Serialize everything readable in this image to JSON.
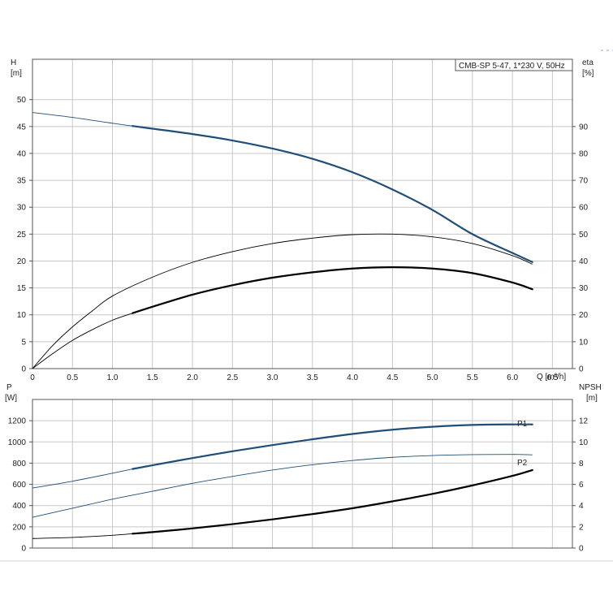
{
  "chart_data": [
    {
      "panel": "upper",
      "type": "line",
      "legend": "CMB-SP 5-47, 1*230 V, 50Hz",
      "legend_position": "top-right",
      "grid": true,
      "x_axis": {
        "label": "Q [m³/h]",
        "range": [
          0,
          6.75
        ],
        "ticks": [
          "0",
          "0.5",
          "1.0",
          "1.5",
          "2.0",
          "2.5",
          "3.0",
          "3.5",
          "4.0",
          "4.5",
          "5.0",
          "5.5",
          "6.0",
          "6.5"
        ]
      },
      "y_left": {
        "label_line1": "H",
        "label_line2": "[m]",
        "range": [
          0,
          57.5
        ],
        "ticks": [
          "0",
          "5",
          "10",
          "15",
          "20",
          "25",
          "30",
          "35",
          "40",
          "45",
          "50"
        ]
      },
      "y_right": {
        "label_line1": "eta",
        "label_line2": "[%]",
        "range": [
          0,
          115
        ],
        "ticks": [
          "0",
          "10",
          "20",
          "30",
          "40",
          "50",
          "60",
          "70",
          "80",
          "90"
        ]
      },
      "series": [
        {
          "axis": "left",
          "color": "#1f4e79",
          "thin_x": [
            0,
            0.5,
            1.0,
            1.25
          ],
          "thin_y": [
            47.6,
            46.7,
            45.6,
            45.1
          ],
          "thick_x": [
            1.25,
            1.5,
            2.0,
            2.5,
            3.0,
            3.5,
            4.0,
            4.5,
            5.0,
            5.5,
            6.0,
            6.25
          ],
          "thick_y": [
            45.1,
            44.6,
            43.6,
            42.4,
            40.9,
            39.0,
            36.5,
            33.3,
            29.5,
            25.0,
            21.5,
            19.8
          ]
        },
        {
          "axis": "right",
          "color": "#000000",
          "thin_x": [
            0,
            0.25,
            0.5,
            0.75,
            1.0,
            1.5,
            2.0,
            2.5,
            3.0,
            3.5,
            4.0,
            4.5,
            5.0,
            5.5,
            6.0,
            6.25
          ],
          "thin_y": [
            0,
            8.5,
            15.5,
            21.5,
            27.0,
            34.0,
            39.5,
            43.5,
            46.5,
            48.5,
            49.8,
            50.0,
            49.0,
            46.5,
            42.0,
            38.8
          ]
        },
        {
          "axis": "right",
          "color": "#000000",
          "thin_x": [
            0,
            0.25,
            0.5,
            0.75,
            1.0,
            1.25
          ],
          "thin_y": [
            0,
            5.5,
            10.5,
            14.5,
            18.0,
            20.6
          ],
          "thick_x": [
            1.25,
            1.5,
            2.0,
            2.5,
            3.0,
            3.5,
            4.0,
            4.5,
            5.0,
            5.5,
            6.0,
            6.25
          ],
          "thick_y": [
            20.6,
            23.0,
            27.5,
            31.0,
            33.8,
            35.8,
            37.2,
            37.7,
            37.2,
            35.5,
            32.0,
            29.5
          ]
        }
      ]
    },
    {
      "panel": "lower",
      "type": "line",
      "grid": true,
      "x_axis": {
        "range": [
          0,
          6.75
        ]
      },
      "y_left": {
        "label_line1": "P",
        "label_line2": "[W]",
        "range": [
          0,
          1400
        ],
        "ticks": [
          "0",
          "200",
          "400",
          "600",
          "800",
          "1000",
          "1200"
        ]
      },
      "y_right": {
        "label_line1": "NPSH",
        "label_line2": "[m]",
        "range": [
          0,
          14
        ],
        "ticks": [
          "0",
          "2",
          "4",
          "6",
          "8",
          "10",
          "12"
        ]
      },
      "series": [
        {
          "name": "P1",
          "axis": "left",
          "color": "#1f4e79",
          "thin_x": [
            0,
            0.5,
            1.0,
            1.25
          ],
          "thin_y": [
            565,
            630,
            705,
            745
          ],
          "thick_x": [
            1.25,
            1.5,
            2.0,
            2.5,
            3.0,
            3.5,
            4.0,
            4.5,
            5.0,
            5.5,
            6.0,
            6.25
          ],
          "thick_y": [
            745,
            780,
            848,
            912,
            970,
            1025,
            1075,
            1115,
            1143,
            1160,
            1165,
            1165
          ]
        },
        {
          "name": "P2",
          "axis": "left",
          "color": "#1f4e79",
          "thin_x": [
            0,
            0.5,
            1.0,
            1.5,
            2.0,
            2.5,
            3.0,
            3.5,
            4.0,
            4.5,
            5.0,
            5.5,
            6.0,
            6.25
          ],
          "thin_y": [
            290,
            375,
            460,
            535,
            610,
            675,
            735,
            785,
            825,
            855,
            872,
            880,
            882,
            878
          ]
        },
        {
          "axis": "right",
          "color": "#000000",
          "thin_x": [
            0,
            0.5,
            1.0,
            1.25
          ],
          "thin_y": [
            0.9,
            1.0,
            1.2,
            1.35
          ],
          "thick_x": [
            1.25,
            1.5,
            2.0,
            2.5,
            3.0,
            3.5,
            4.0,
            4.5,
            5.0,
            5.5,
            6.0,
            6.25
          ],
          "thick_y": [
            1.35,
            1.5,
            1.85,
            2.25,
            2.7,
            3.2,
            3.75,
            4.4,
            5.1,
            5.9,
            6.8,
            7.35
          ]
        }
      ]
    }
  ]
}
